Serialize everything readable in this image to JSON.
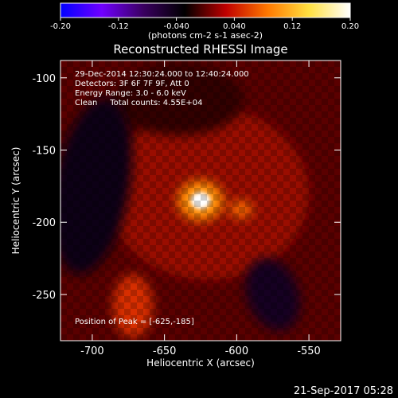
{
  "chart_data": {
    "type": "heatmap",
    "title": "Reconstructed RHESSI Image",
    "xlabel": "Heliocentric X (arcsec)",
    "ylabel": "Heliocentric Y (arcsec)",
    "xlim": [
      -722,
      -528
    ],
    "ylim": [
      -282,
      -88
    ],
    "xticks": [
      -700,
      -650,
      -600,
      -550
    ],
    "yticks": [
      -100,
      -150,
      -200,
      -250
    ],
    "colorbar": {
      "vmin": -0.2,
      "vmax": 0.2,
      "ticks": [
        "-0.20",
        "-0.12",
        "-0.040",
        "0.040",
        "0.12",
        "0.20"
      ],
      "unit_label": "(photons cm-2 s-1 asec-2)",
      "colors": [
        "#0000ff",
        "#7000ff",
        "#3a0060",
        "#000000",
        "#c00000",
        "#ff7800",
        "#ffe040",
        "#ffffff"
      ]
    },
    "info_lines": [
      "29-Dec-2014 12:30:24.000 to 12:40:24.000",
      "Detectors: 3F 6F 7F 9F, Att 0",
      "Energy Range: 3.0 - 6.0 keV",
      "Clean     Total counts: 4.55E+04"
    ],
    "peak_label": "Position of Peak = [-625,-185]",
    "peak": {
      "x": -625,
      "y": -185
    },
    "sources": [
      {
        "x": -625,
        "y": -185,
        "value": 0.2
      },
      {
        "x": -597,
        "y": -191,
        "value": 0.08
      },
      {
        "x": -672,
        "y": -258,
        "value": 0.05
      }
    ],
    "negative_regions": [
      {
        "x": -700,
        "y": -175,
        "value": -0.04
      },
      {
        "x": -575,
        "y": -250,
        "value": -0.05
      }
    ]
  },
  "footer": {
    "timestamp": "21-Sep-2017 05:28"
  }
}
